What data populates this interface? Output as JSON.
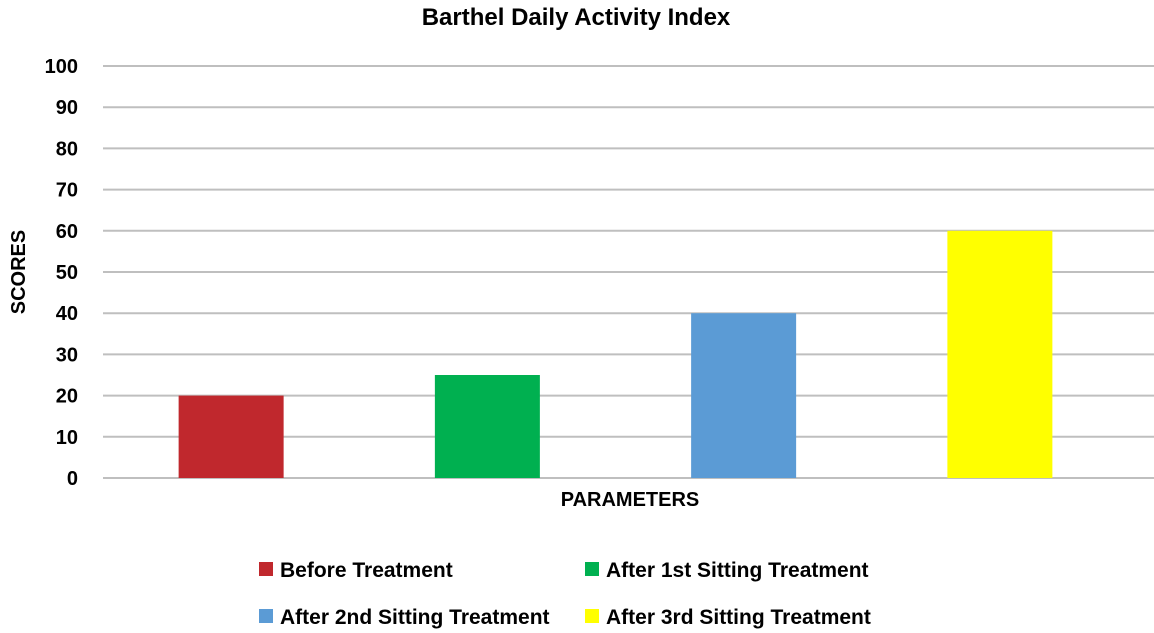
{
  "chart_data": {
    "type": "bar",
    "title": "Barthel Daily Activity Index",
    "xlabel": "PARAMETERS",
    "ylabel": "SCORES",
    "ylim": [
      0,
      100
    ],
    "ytick_step": 10,
    "grid": true,
    "legend_position": "bottom",
    "series": [
      {
        "name": "Before Treatment",
        "value": 20,
        "color": "#c0282d"
      },
      {
        "name": "After 1st Sitting Treatment",
        "value": 25,
        "color": "#00b050"
      },
      {
        "name": "After 2nd Sitting Treatment",
        "value": 40,
        "color": "#5b9bd5"
      },
      {
        "name": "After 3rd Sitting Treatment",
        "value": 60,
        "color": "#ffff00"
      }
    ]
  }
}
